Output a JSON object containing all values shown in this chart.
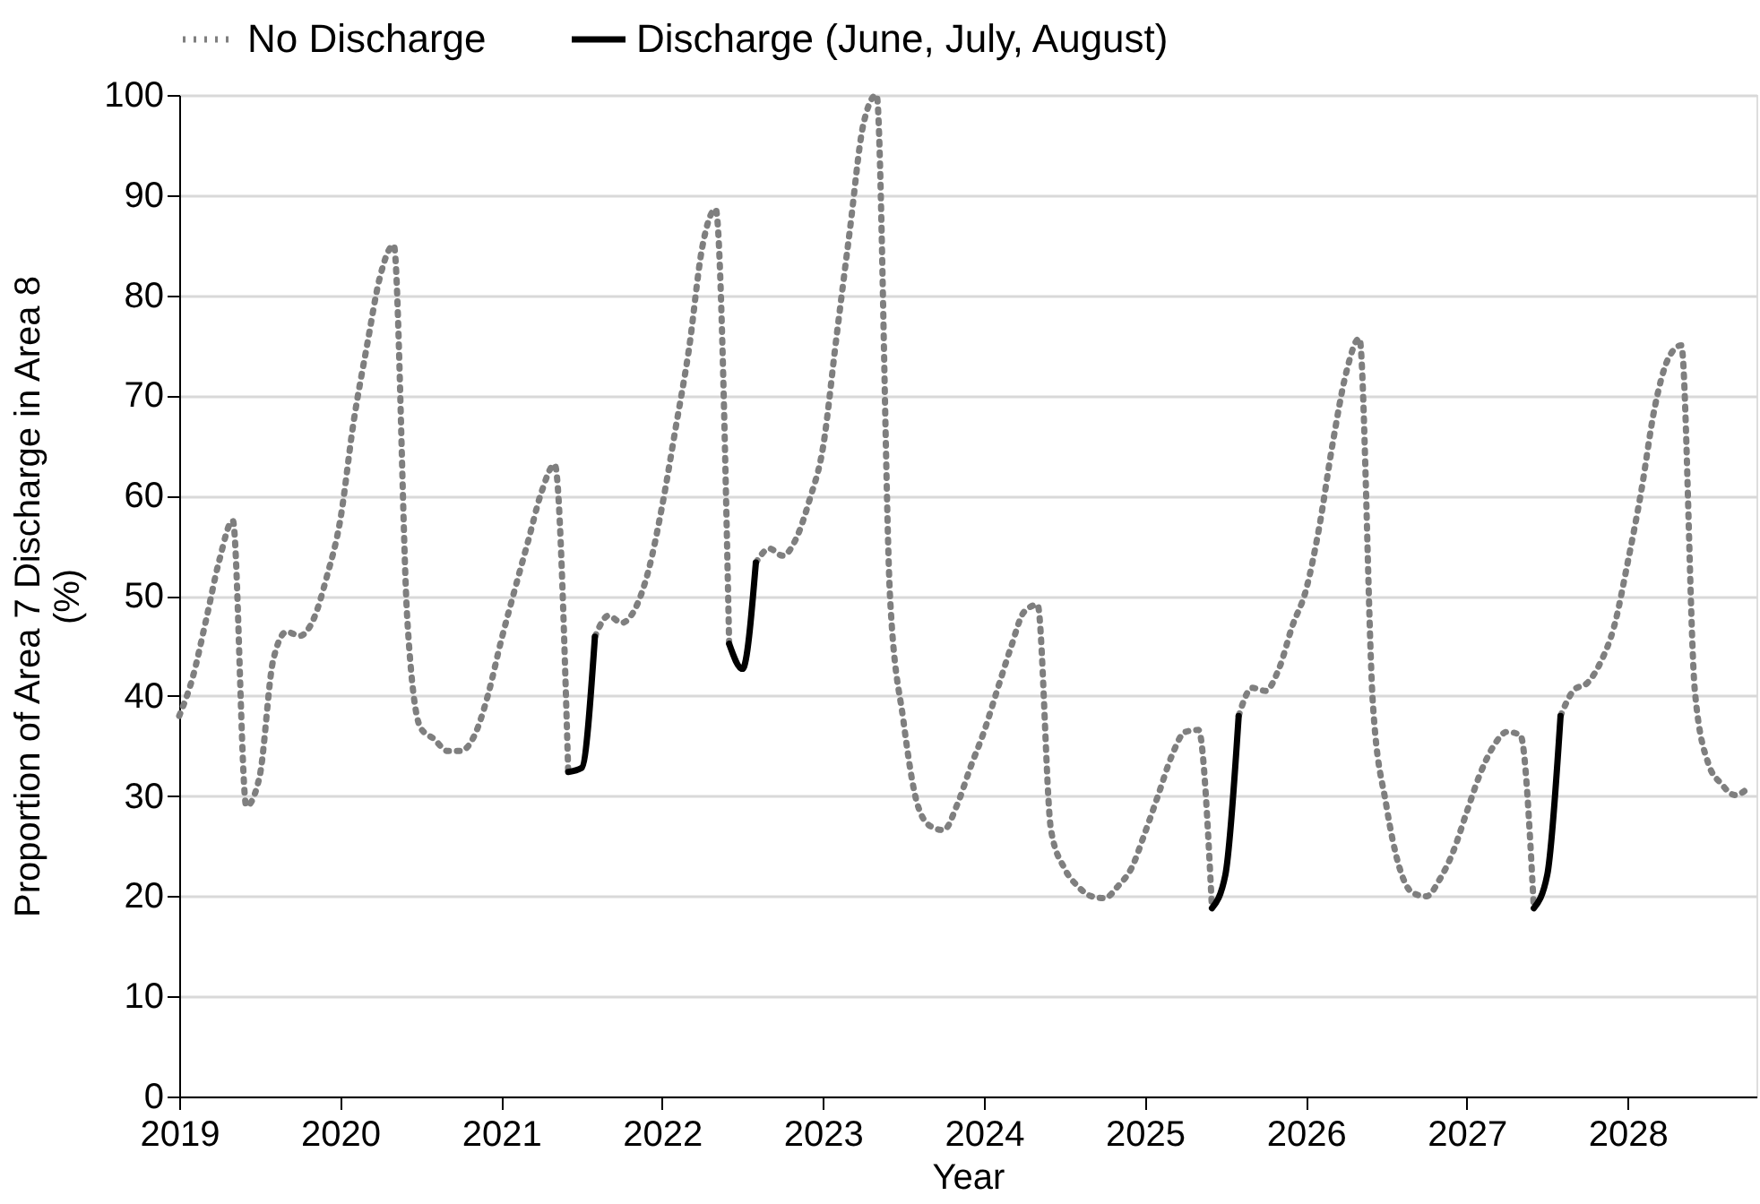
{
  "chart_data": {
    "type": "line",
    "xlabel": "Year",
    "ylabel": "Proportion of Area 7 Discharge in Area 8 (%)",
    "x": [
      2019,
      2019.083,
      2019.167,
      2019.25,
      2019.333,
      2019.417,
      2019.5,
      2019.583,
      2019.667,
      2019.75,
      2019.833,
      2019.917,
      2020,
      2020.083,
      2020.167,
      2020.25,
      2020.333,
      2020.417,
      2020.5,
      2020.583,
      2020.667,
      2020.75,
      2020.833,
      2020.917,
      2021,
      2021.083,
      2021.167,
      2021.25,
      2021.333,
      2021.417,
      2021.5,
      2021.583,
      2021.667,
      2021.75,
      2021.833,
      2021.917,
      2022,
      2022.083,
      2022.167,
      2022.25,
      2022.333,
      2022.417,
      2022.5,
      2022.583,
      2022.667,
      2022.75,
      2022.833,
      2022.917,
      2023,
      2023.083,
      2023.167,
      2023.25,
      2023.333,
      2023.417,
      2023.5,
      2023.583,
      2023.667,
      2023.75,
      2023.833,
      2023.917,
      2024,
      2024.083,
      2024.167,
      2024.25,
      2024.333,
      2024.417,
      2024.5,
      2024.583,
      2024.667,
      2024.75,
      2024.833,
      2024.917,
      2025,
      2025.083,
      2025.167,
      2025.25,
      2025.333,
      2025.417,
      2025.5,
      2025.583,
      2025.667,
      2025.75,
      2025.833,
      2025.917,
      2026,
      2026.083,
      2026.167,
      2026.25,
      2026.333,
      2026.417,
      2026.5,
      2026.583,
      2026.667,
      2026.75,
      2026.833,
      2026.917,
      2027,
      2027.083,
      2027.167,
      2027.25,
      2027.333,
      2027.417,
      2027.5,
      2027.583,
      2027.667,
      2027.75,
      2027.833,
      2027.917,
      2028,
      2028.083,
      2028.167,
      2028.25,
      2028.333,
      2028.417,
      2028.5,
      2028.583,
      2028.667,
      2028.75
    ],
    "series": [
      {
        "name": "No Discharge",
        "color": "#7f7f7f",
        "line_style": "dotted",
        "values": [
          38,
          41.8,
          47.6,
          53.6,
          57.5,
          29,
          32,
          43.5,
          46.4,
          46,
          47.6,
          51.9,
          57.5,
          67.3,
          75,
          82,
          85,
          47.7,
          36.8,
          35.7,
          34.5,
          34.5,
          36,
          40,
          45.5,
          50.5,
          55.4,
          60.3,
          63.1,
          32.4,
          null,
          45.9,
          48,
          47.3,
          48.7,
          52.6,
          58.9,
          66.6,
          74.6,
          84.8,
          88.6,
          45.2,
          null,
          53.3,
          54.7,
          54,
          55.7,
          59.6,
          64.8,
          75.7,
          86.5,
          97,
          100,
          49.8,
          37.5,
          29.4,
          27,
          26.6,
          29.1,
          32.9,
          36.4,
          40.6,
          44.8,
          48.4,
          49.1,
          26.6,
          22.8,
          21,
          20,
          19.8,
          21,
          22.8,
          26.3,
          30.1,
          34,
          36.4,
          36.6,
          18.8,
          null,
          38,
          40.8,
          40.5,
          42.7,
          47,
          50.5,
          56.8,
          65.2,
          72.2,
          75.7,
          39.2,
          29.1,
          22.8,
          20.3,
          20,
          21.7,
          24.5,
          28.4,
          32.2,
          35,
          36.4,
          36.1,
          18.8,
          null,
          38,
          40.6,
          41.3,
          43.4,
          47,
          53.3,
          60.3,
          68.7,
          73.6,
          75,
          40.6,
          33.3,
          31.2,
          30.1,
          30.8
        ]
      },
      {
        "name": "Discharge (June, July, August)",
        "color": "#000000",
        "line_style": "solid",
        "x": [
          2021.417,
          2021.5,
          2021.583,
          2022,
          2022.417,
          2022.5,
          2022.583,
          2024,
          2025.417,
          2025.5,
          2025.583,
          2026,
          2027.417,
          2027.5,
          2027.583
        ],
        "values": [
          32.4,
          32.8,
          45.9,
          null,
          45.2,
          42.7,
          53.3,
          null,
          18.8,
          22.1,
          38,
          null,
          18.8,
          22.1,
          38
        ]
      }
    ],
    "xlim": [
      2019,
      2028.8
    ],
    "xticks": [
      2019,
      2020,
      2021,
      2022,
      2023,
      2024,
      2025,
      2026,
      2027,
      2028
    ],
    "ylim": [
      0,
      100
    ],
    "yticks": [
      0,
      10,
      20,
      30,
      40,
      50,
      60,
      70,
      80,
      90,
      100
    ],
    "grid": "y",
    "legend": "top"
  }
}
